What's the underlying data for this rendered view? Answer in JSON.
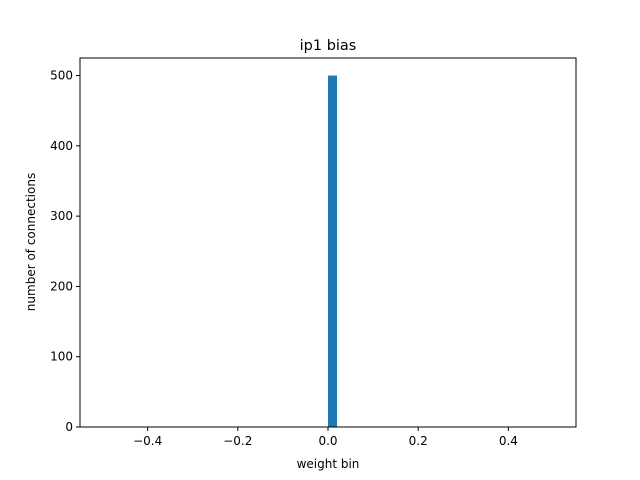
{
  "chart_data": {
    "type": "bar",
    "title": "ip1 bias",
    "xlabel": "weight bin",
    "ylabel": "number of connections",
    "xlim": [
      -0.55,
      0.55
    ],
    "ylim": [
      0,
      525
    ],
    "xticks": [
      -0.4,
      -0.2,
      0.0,
      0.2,
      0.4
    ],
    "xtick_labels": [
      "−0.4",
      "−0.2",
      "0.0",
      "0.2",
      "0.4"
    ],
    "yticks": [
      0,
      100,
      200,
      300,
      400,
      500
    ],
    "ytick_labels": [
      "0",
      "100",
      "200",
      "300",
      "400",
      "500"
    ],
    "bars": [
      {
        "x_start": 0.0,
        "x_end": 0.02,
        "value": 500
      }
    ],
    "bar_color": "#1f77b4",
    "grid": false
  }
}
